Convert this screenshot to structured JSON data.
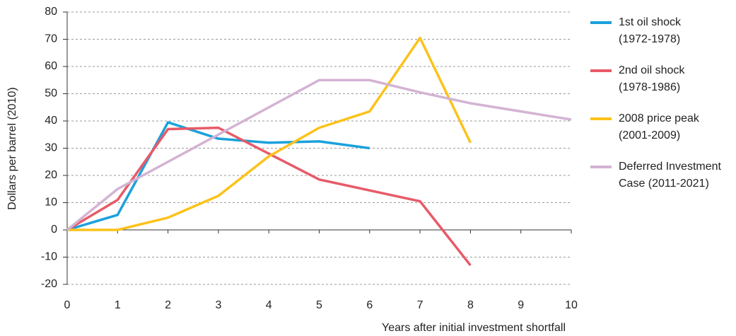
{
  "chart_data": {
    "type": "line",
    "xlabel": "Years after initial investment shortfall",
    "ylabel": "Dollars per barrel (2010)",
    "xlim": [
      0,
      10
    ],
    "xticks": [
      0,
      1,
      2,
      3,
      4,
      5,
      6,
      7,
      8,
      9,
      10
    ],
    "ylim": [
      -20,
      80
    ],
    "yticks": [
      -20,
      -10,
      0,
      10,
      20,
      30,
      40,
      50,
      60,
      70,
      80
    ],
    "grid": true,
    "legend": "right",
    "series": [
      {
        "name": "1st oil shock\n(1972-1978)",
        "color": "#1ba1dc",
        "x": [
          0,
          1,
          2,
          3,
          4,
          5,
          6
        ],
        "values": [
          0,
          5.5,
          39.5,
          33.5,
          32,
          32.5,
          30
        ]
      },
      {
        "name": "2nd oil shock\n(1978-1986)",
        "color": "#e85a68",
        "x": [
          0,
          1,
          2,
          3,
          4,
          5,
          6,
          7,
          8
        ],
        "values": [
          0,
          11,
          37,
          37.5,
          28,
          18.5,
          14.5,
          10.5,
          -13
        ]
      },
      {
        "name": "2008 price peak\n(2001-2009)",
        "color": "#fcc21b",
        "x": [
          0,
          1,
          2,
          3,
          4,
          5,
          6,
          7,
          8
        ],
        "values": [
          0,
          0,
          4.5,
          12.5,
          27,
          37.5,
          43.5,
          70.5,
          32
        ]
      },
      {
        "name": "Deferred Investment\nCase (2011-2021)",
        "color": "#d3b3d3",
        "x": [
          0,
          1,
          2,
          3,
          4,
          5,
          6,
          7,
          8,
          9,
          10
        ],
        "values": [
          0,
          15,
          25,
          35,
          45,
          55,
          55,
          50.5,
          46.5,
          43.5,
          40.5
        ]
      }
    ]
  }
}
